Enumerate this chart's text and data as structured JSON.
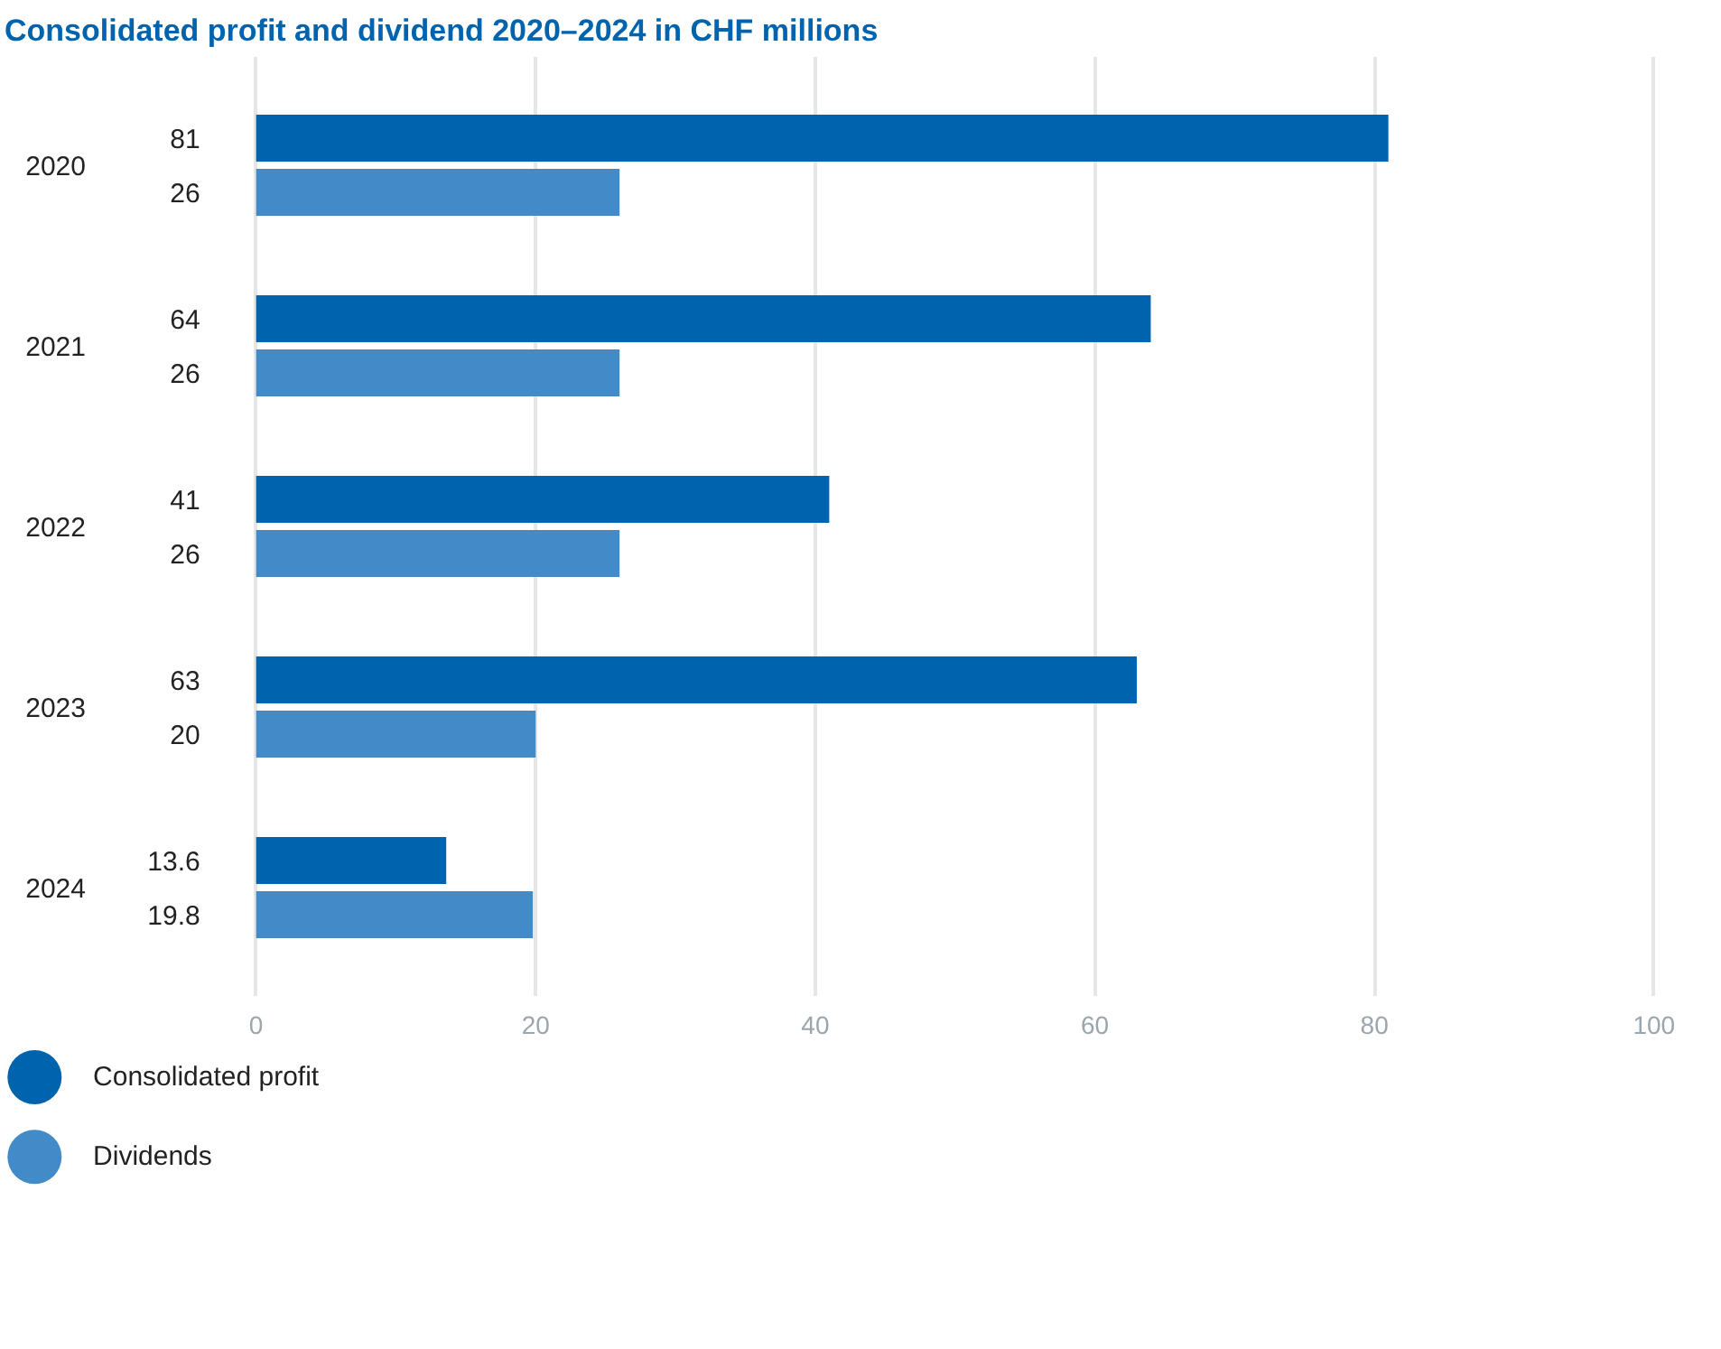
{
  "chart_data": {
    "type": "bar",
    "orientation": "horizontal",
    "title": "Consolidated profit and dividend 2020–2024 in CHF millions",
    "categories": [
      "2020",
      "2021",
      "2022",
      "2023",
      "2024"
    ],
    "series": [
      {
        "name": "Consolidated profit",
        "color": "#0063ad",
        "values": [
          81,
          64,
          41,
          63,
          13.6
        ]
      },
      {
        "name": "Dividends",
        "color": "#428bc8",
        "values": [
          26,
          26,
          26,
          20,
          19.8
        ]
      }
    ],
    "xlim": [
      0,
      100
    ],
    "xticks": [
      0,
      20,
      40,
      60,
      80,
      100
    ],
    "grid": "x",
    "legend": "bottom",
    "data_labels": true
  }
}
